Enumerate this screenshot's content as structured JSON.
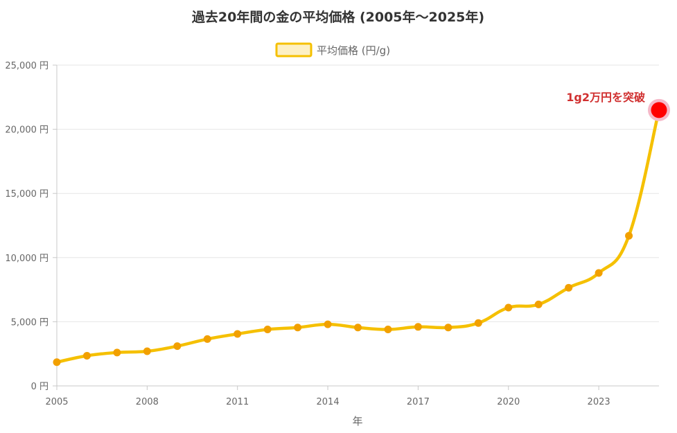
{
  "chart_data": {
    "type": "line",
    "title": "過去20年間の金の平均価格 (2005年～2025年)",
    "xlabel": "年",
    "ylabel": "",
    "x": [
      2005,
      2006,
      2007,
      2008,
      2009,
      2010,
      2011,
      2012,
      2013,
      2014,
      2015,
      2016,
      2017,
      2018,
      2019,
      2020,
      2021,
      2022,
      2023,
      2024,
      2025
    ],
    "x_tick_labels": [
      "2005",
      "2008",
      "2011",
      "2014",
      "2017",
      "2020",
      "2023"
    ],
    "x_ticks": [
      2005,
      2008,
      2011,
      2014,
      2017,
      2020,
      2023
    ],
    "ylim": [
      0,
      25000
    ],
    "y_ticks": [
      0,
      5000,
      10000,
      15000,
      20000,
      25000
    ],
    "y_tick_labels": [
      "0 円",
      "5,000 円",
      "10,000 円",
      "15,000 円",
      "20,000 円",
      "25,000 円"
    ],
    "series": [
      {
        "name": "平均価格 (円/g)",
        "color": "#f5c000",
        "point_color": "#f2a000",
        "values": [
          1850,
          2350,
          2600,
          2700,
          3100,
          3650,
          4050,
          4400,
          4550,
          4800,
          4550,
          4400,
          4600,
          4550,
          4900,
          6100,
          6350,
          7650,
          8800,
          11700,
          21500
        ]
      }
    ],
    "highlight": {
      "x": 2025,
      "y": 21500,
      "color": "#ff0000",
      "halo_color": "#f5b8c8",
      "label": "1g2万円を突破"
    },
    "grid": true,
    "legend_position": "top"
  }
}
